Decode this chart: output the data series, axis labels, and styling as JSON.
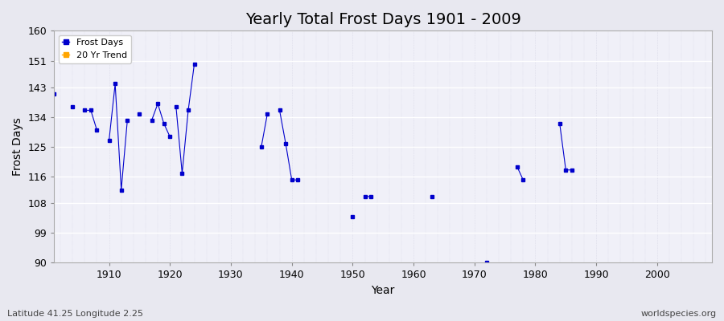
{
  "title": "Yearly Total Frost Days 1901 - 2009",
  "xlabel": "Year",
  "ylabel": "Frost Days",
  "bottom_left_label": "Latitude 41.25 Longitude 2.25",
  "bottom_right_label": "worldspecies.org",
  "legend_entries": [
    "Frost Days",
    "20 Yr Trend"
  ],
  "legend_colors": [
    "#0000cc",
    "#ffa500"
  ],
  "ylim": [
    90,
    160
  ],
  "xlim": [
    1901,
    2009
  ],
  "yticks": [
    90,
    99,
    108,
    116,
    125,
    134,
    143,
    151,
    160
  ],
  "xticks": [
    1910,
    1920,
    1930,
    1940,
    1950,
    1960,
    1970,
    1980,
    1990,
    2000
  ],
  "segments": [
    {
      "years": [
        1901,
        1902,
        1903,
        1904,
        1905,
        1906,
        1907,
        1908
      ],
      "values": [
        141,
        null,
        null,
        137,
        null,
        136,
        136,
        130
      ]
    },
    {
      "years": [
        1910,
        1911,
        1912,
        1913
      ],
      "values": [
        127,
        144,
        112,
        133
      ]
    },
    {
      "years": [
        1915,
        1916,
        1917,
        1918,
        1919,
        1920
      ],
      "values": [
        135,
        null,
        133,
        138,
        132,
        128
      ]
    },
    {
      "years": [
        1921,
        1922,
        1923,
        1924
      ],
      "values": [
        137,
        117,
        136,
        150
      ]
    },
    {
      "years": [
        1935,
        1936
      ],
      "values": [
        125,
        135
      ]
    },
    {
      "years": [
        1938,
        1939,
        1940,
        1941
      ],
      "values": [
        136,
        126,
        115,
        115
      ]
    },
    {
      "years": [
        1950
      ],
      "values": [
        104
      ]
    },
    {
      "years": [
        1952,
        1953
      ],
      "values": [
        110,
        110
      ]
    },
    {
      "years": [
        1963
      ],
      "values": [
        110
      ]
    },
    {
      "years": [
        1972
      ],
      "values": [
        90
      ]
    },
    {
      "years": [
        1977,
        1978
      ],
      "values": [
        119,
        115
      ]
    },
    {
      "years": [
        1984,
        1985,
        1986
      ],
      "values": [
        132,
        118,
        118
      ]
    }
  ],
  "line_color": "#0000cc",
  "marker": "s",
  "marker_size": 3,
  "bg_color": "#e8e8f0",
  "plot_bg_color": "#f0f0f8",
  "grid_color": "#ffffff",
  "title_fontsize": 14
}
